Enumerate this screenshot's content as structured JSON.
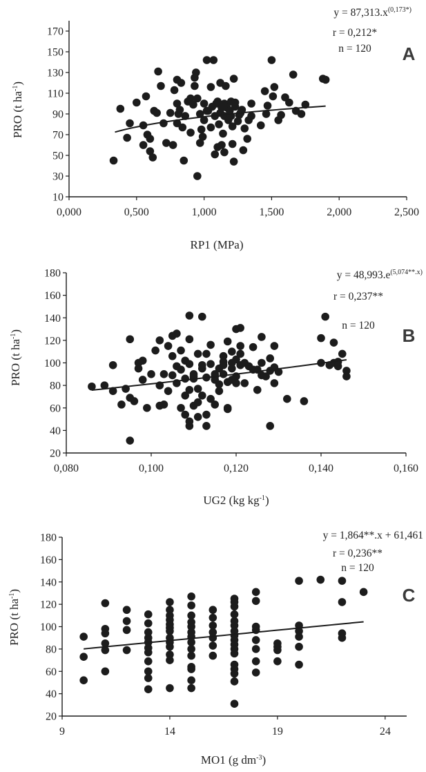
{
  "chart_data": [
    {
      "type": "scatter",
      "panel_label": "A",
      "xlabel": "RP1 (MPa)",
      "ylabel_main": "PRO (t ha",
      "ylabel_sup": "-1",
      "ylabel_close": ")",
      "xlim": [
        0,
        2.5
      ],
      "ylim": [
        10,
        180
      ],
      "x_ticks": [
        "0,000",
        "0,500",
        "1,000",
        "1,500",
        "2,000",
        "2,500"
      ],
      "x_tick_values": [
        0,
        0.5,
        1.0,
        1.5,
        2.0,
        2.5
      ],
      "y_ticks": [
        "10",
        "30",
        "50",
        "70",
        "90",
        "110",
        "130",
        "150",
        "170"
      ],
      "y_tick_values": [
        10,
        30,
        50,
        70,
        90,
        110,
        130,
        150,
        170
      ],
      "equation_main": "y = 87,313.x",
      "equation_sup": "(0,173*)",
      "r_text": "r = 0,212*",
      "n_text": "n = 120",
      "trend": {
        "model": "power",
        "a": 87.313,
        "b": 0.173,
        "x_range": [
          0.34,
          1.9
        ]
      },
      "points": [
        [
          0.33,
          45
        ],
        [
          0.38,
          95
        ],
        [
          0.43,
          67
        ],
        [
          0.45,
          81
        ],
        [
          0.5,
          101
        ],
        [
          0.55,
          79
        ],
        [
          0.55,
          60
        ],
        [
          0.57,
          107
        ],
        [
          0.58,
          70
        ],
        [
          0.6,
          54
        ],
        [
          0.6,
          66
        ],
        [
          0.62,
          48
        ],
        [
          0.63,
          93
        ],
        [
          0.65,
          91
        ],
        [
          0.66,
          131
        ],
        [
          0.68,
          117
        ],
        [
          0.7,
          81
        ],
        [
          0.72,
          62
        ],
        [
          0.75,
          91
        ],
        [
          0.77,
          60
        ],
        [
          0.78,
          113
        ],
        [
          0.8,
          81
        ],
        [
          0.8,
          100
        ],
        [
          0.8,
          123
        ],
        [
          0.81,
          90
        ],
        [
          0.82,
          94
        ],
        [
          0.83,
          120
        ],
        [
          0.84,
          77
        ],
        [
          0.85,
          45
        ],
        [
          0.86,
          88
        ],
        [
          0.88,
          102
        ],
        [
          0.9,
          105
        ],
        [
          0.9,
          72
        ],
        [
          0.92,
          99
        ],
        [
          0.93,
          117
        ],
        [
          0.93,
          125
        ],
        [
          0.94,
          130
        ],
        [
          0.95,
          30
        ],
        [
          0.95,
          105
        ],
        [
          0.97,
          90
        ],
        [
          0.97,
          62
        ],
        [
          0.98,
          75
        ],
        [
          0.99,
          68
        ],
        [
          1.0,
          84
        ],
        [
          1.0,
          100
        ],
        [
          1.02,
          142
        ],
        [
          1.02,
          93
        ],
        [
          1.03,
          93
        ],
        [
          1.05,
          116
        ],
        [
          1.05,
          77
        ],
        [
          1.06,
          97
        ],
        [
          1.07,
          142
        ],
        [
          1.08,
          88
        ],
        [
          1.08,
          51
        ],
        [
          1.09,
          100
        ],
        [
          1.1,
          102
        ],
        [
          1.1,
          58
        ],
        [
          1.11,
          80
        ],
        [
          1.12,
          120
        ],
        [
          1.12,
          91
        ],
        [
          1.13,
          96
        ],
        [
          1.13,
          60
        ],
        [
          1.14,
          71
        ],
        [
          1.15,
          100
        ],
        [
          1.15,
          53
        ],
        [
          1.15,
          88
        ],
        [
          1.16,
          117
        ],
        [
          1.17,
          96
        ],
        [
          1.18,
          84
        ],
        [
          1.19,
          93
        ],
        [
          1.2,
          102
        ],
        [
          1.2,
          88
        ],
        [
          1.21,
          61
        ],
        [
          1.21,
          78
        ],
        [
          1.22,
          44
        ],
        [
          1.22,
          124
        ],
        [
          1.23,
          97
        ],
        [
          1.23,
          101
        ],
        [
          1.25,
          83
        ],
        [
          1.26,
          89
        ],
        [
          1.27,
          91
        ],
        [
          1.28,
          94
        ],
        [
          1.29,
          55
        ],
        [
          1.3,
          76
        ],
        [
          1.32,
          66
        ],
        [
          1.33,
          84
        ],
        [
          1.35,
          100
        ],
        [
          1.35,
          88
        ],
        [
          1.42,
          79
        ],
        [
          1.45,
          112
        ],
        [
          1.46,
          90
        ],
        [
          1.47,
          98
        ],
        [
          1.5,
          142
        ],
        [
          1.51,
          107
        ],
        [
          1.52,
          116
        ],
        [
          1.55,
          84
        ],
        [
          1.57,
          89
        ],
        [
          1.6,
          106
        ],
        [
          1.63,
          101
        ],
        [
          1.66,
          128
        ],
        [
          1.68,
          93
        ],
        [
          1.72,
          90
        ],
        [
          1.75,
          99
        ],
        [
          1.88,
          124
        ],
        [
          1.9,
          123
        ]
      ]
    },
    {
      "type": "scatter",
      "panel_label": "B",
      "xlabel_main": "UG2 (kg kg",
      "xlabel_sup": "-1",
      "xlabel_close": ")",
      "ylabel_main": "PRO (t ha",
      "ylabel_sup": "-1",
      "ylabel_close": ")",
      "xlim": [
        0.08,
        0.16
      ],
      "ylim": [
        20,
        180
      ],
      "x_ticks": [
        "0,080",
        "0,100",
        "0,120",
        "0,140",
        "0,160"
      ],
      "x_tick_values": [
        0.08,
        0.1,
        0.12,
        0.14,
        0.16
      ],
      "y_ticks": [
        "20",
        "40",
        "60",
        "80",
        "100",
        "120",
        "140",
        "160",
        "180"
      ],
      "y_tick_values": [
        20,
        40,
        60,
        80,
        100,
        120,
        140,
        160,
        180
      ],
      "equation_main": "y = 48,993.e",
      "equation_sup": "(5,074**.x)",
      "r_text": "r = 0,237**",
      "n_text": "n = 120",
      "trend": {
        "model": "exponential",
        "a": 48.993,
        "b": 5.074,
        "x_range": [
          0.086,
          0.146
        ]
      },
      "points": [
        [
          0.086,
          79
        ],
        [
          0.089,
          80
        ],
        [
          0.091,
          75
        ],
        [
          0.091,
          98
        ],
        [
          0.093,
          63
        ],
        [
          0.094,
          77
        ],
        [
          0.095,
          31
        ],
        [
          0.095,
          121
        ],
        [
          0.095,
          69
        ],
        [
          0.096,
          66
        ],
        [
          0.097,
          95
        ],
        [
          0.097,
          100
        ],
        [
          0.098,
          85
        ],
        [
          0.098,
          102
        ],
        [
          0.099,
          60
        ],
        [
          0.1,
          90
        ],
        [
          0.101,
          111
        ],
        [
          0.102,
          120
        ],
        [
          0.102,
          80
        ],
        [
          0.102,
          62
        ],
        [
          0.103,
          90
        ],
        [
          0.103,
          63
        ],
        [
          0.104,
          115
        ],
        [
          0.104,
          75
        ],
        [
          0.105,
          124
        ],
        [
          0.105,
          89
        ],
        [
          0.105,
          106
        ],
        [
          0.106,
          126
        ],
        [
          0.106,
          97
        ],
        [
          0.106,
          82
        ],
        [
          0.107,
          94
        ],
        [
          0.107,
          60
        ],
        [
          0.107,
          111
        ],
        [
          0.108,
          71
        ],
        [
          0.108,
          102
        ],
        [
          0.108,
          86
        ],
        [
          0.108,
          54
        ],
        [
          0.109,
          48
        ],
        [
          0.109,
          44
        ],
        [
          0.109,
          121
        ],
        [
          0.109,
          99
        ],
        [
          0.109,
          76
        ],
        [
          0.109,
          142
        ],
        [
          0.11,
          86
        ],
        [
          0.11,
          88
        ],
        [
          0.11,
          90
        ],
        [
          0.11,
          62
        ],
        [
          0.111,
          108
        ],
        [
          0.111,
          77
        ],
        [
          0.111,
          52
        ],
        [
          0.111,
          65
        ],
        [
          0.112,
          95
        ],
        [
          0.112,
          141
        ],
        [
          0.112,
          71
        ],
        [
          0.112,
          98
        ],
        [
          0.113,
          87
        ],
        [
          0.113,
          108
        ],
        [
          0.113,
          54
        ],
        [
          0.113,
          44
        ],
        [
          0.114,
          99
        ],
        [
          0.114,
          116
        ],
        [
          0.114,
          68
        ],
        [
          0.115,
          85
        ],
        [
          0.115,
          88
        ],
        [
          0.115,
          90
        ],
        [
          0.115,
          63
        ],
        [
          0.116,
          75
        ],
        [
          0.116,
          81
        ],
        [
          0.116,
          95
        ],
        [
          0.117,
          90
        ],
        [
          0.117,
          98
        ],
        [
          0.117,
          101
        ],
        [
          0.117,
          106
        ],
        [
          0.118,
          119
        ],
        [
          0.118,
          83
        ],
        [
          0.118,
          59
        ],
        [
          0.118,
          60
        ],
        [
          0.119,
          85
        ],
        [
          0.119,
          95
        ],
        [
          0.119,
          100
        ],
        [
          0.119,
          110
        ],
        [
          0.12,
          82
        ],
        [
          0.12,
          88
        ],
        [
          0.12,
          103
        ],
        [
          0.12,
          130
        ],
        [
          0.121,
          98
        ],
        [
          0.121,
          108
        ],
        [
          0.121,
          115
        ],
        [
          0.121,
          131
        ],
        [
          0.122,
          100
        ],
        [
          0.122,
          82
        ],
        [
          0.123,
          97
        ],
        [
          0.124,
          94
        ],
        [
          0.124,
          114
        ],
        [
          0.125,
          76
        ],
        [
          0.125,
          94
        ],
        [
          0.126,
          100
        ],
        [
          0.126,
          123
        ],
        [
          0.126,
          89
        ],
        [
          0.127,
          88
        ],
        [
          0.128,
          44
        ],
        [
          0.128,
          93
        ],
        [
          0.128,
          104
        ],
        [
          0.129,
          96
        ],
        [
          0.129,
          82
        ],
        [
          0.129,
          115
        ],
        [
          0.13,
          92
        ],
        [
          0.132,
          68
        ],
        [
          0.136,
          66
        ],
        [
          0.14,
          100
        ],
        [
          0.14,
          122
        ],
        [
          0.141,
          141
        ],
        [
          0.142,
          98
        ],
        [
          0.143,
          118
        ],
        [
          0.143,
          100
        ],
        [
          0.144,
          97
        ],
        [
          0.145,
          108
        ],
        [
          0.146,
          88
        ],
        [
          0.146,
          93
        ],
        [
          0.144,
          101
        ]
      ]
    },
    {
      "type": "scatter",
      "panel_label": "C",
      "xlabel_main": "MO1 (g dm",
      "xlabel_sup": "-3",
      "xlabel_close": ")",
      "ylabel_main": "PRO (t ha",
      "ylabel_sup": "-1",
      "ylabel_close": ")",
      "xlim": [
        9,
        25
      ],
      "ylim": [
        20,
        180
      ],
      "x_ticks": [
        "9",
        "14",
        "19",
        "24"
      ],
      "x_tick_values": [
        9,
        14,
        19,
        24
      ],
      "y_ticks": [
        "20",
        "40",
        "60",
        "80",
        "100",
        "120",
        "140",
        "160",
        "180"
      ],
      "y_tick_values": [
        20,
        40,
        60,
        80,
        100,
        120,
        140,
        160,
        180
      ],
      "equation_main": "y = 1,864**.x + 61,461",
      "equation_sup": "",
      "r_text": "r = 0,236**",
      "n_text": "n = 120",
      "trend": {
        "model": "linear",
        "a": 61.461,
        "b": 1.864,
        "x_range": [
          10,
          23
        ]
      },
      "points": [
        [
          10,
          91
        ],
        [
          10,
          73
        ],
        [
          10,
          52
        ],
        [
          11,
          121
        ],
        [
          11,
          98
        ],
        [
          11,
          94
        ],
        [
          11,
          85
        ],
        [
          11,
          79
        ],
        [
          11,
          60
        ],
        [
          12,
          115
        ],
        [
          12,
          105
        ],
        [
          12,
          97
        ],
        [
          12,
          79
        ],
        [
          13,
          111
        ],
        [
          13,
          103
        ],
        [
          13,
          95
        ],
        [
          13,
          90
        ],
        [
          13,
          86
        ],
        [
          13,
          81
        ],
        [
          13,
          77
        ],
        [
          13,
          69
        ],
        [
          13,
          60
        ],
        [
          13,
          54
        ],
        [
          13,
          44
        ],
        [
          14,
          122
        ],
        [
          14,
          115
        ],
        [
          14,
          110
        ],
        [
          14,
          106
        ],
        [
          14,
          102
        ],
        [
          14,
          99
        ],
        [
          14,
          96
        ],
        [
          14,
          90
        ],
        [
          14,
          86
        ],
        [
          14,
          82
        ],
        [
          14,
          75
        ],
        [
          14,
          70
        ],
        [
          14,
          45
        ],
        [
          15,
          127
        ],
        [
          15,
          119
        ],
        [
          15,
          110
        ],
        [
          15,
          104
        ],
        [
          15,
          100
        ],
        [
          15,
          95
        ],
        [
          15,
          91
        ],
        [
          15,
          86
        ],
        [
          15,
          80
        ],
        [
          15,
          74
        ],
        [
          15,
          64
        ],
        [
          15,
          62
        ],
        [
          15,
          52
        ],
        [
          15,
          45
        ],
        [
          16,
          115
        ],
        [
          16,
          108
        ],
        [
          16,
          101
        ],
        [
          16,
          95
        ],
        [
          16,
          90
        ],
        [
          16,
          83
        ],
        [
          16,
          74
        ],
        [
          17,
          125
        ],
        [
          17,
          122
        ],
        [
          17,
          118
        ],
        [
          17,
          111
        ],
        [
          17,
          105
        ],
        [
          17,
          101
        ],
        [
          17,
          96
        ],
        [
          17,
          92
        ],
        [
          17,
          88
        ],
        [
          17,
          84
        ],
        [
          17,
          80
        ],
        [
          17,
          76
        ],
        [
          17,
          66
        ],
        [
          17,
          62
        ],
        [
          17,
          58
        ],
        [
          17,
          51
        ],
        [
          17,
          31
        ],
        [
          18,
          131
        ],
        [
          18,
          123
        ],
        [
          18,
          100
        ],
        [
          18,
          97
        ],
        [
          18,
          88
        ],
        [
          18,
          80
        ],
        [
          18,
          69
        ],
        [
          18,
          59
        ],
        [
          19,
          85
        ],
        [
          19,
          82
        ],
        [
          19,
          79
        ],
        [
          19,
          69
        ],
        [
          20,
          141
        ],
        [
          20,
          101
        ],
        [
          20,
          96
        ],
        [
          20,
          91
        ],
        [
          20,
          82
        ],
        [
          20,
          66
        ],
        [
          21,
          142
        ],
        [
          22,
          141
        ],
        [
          22,
          122
        ],
        [
          22,
          94
        ],
        [
          22,
          90
        ],
        [
          23,
          131
        ]
      ]
    }
  ]
}
